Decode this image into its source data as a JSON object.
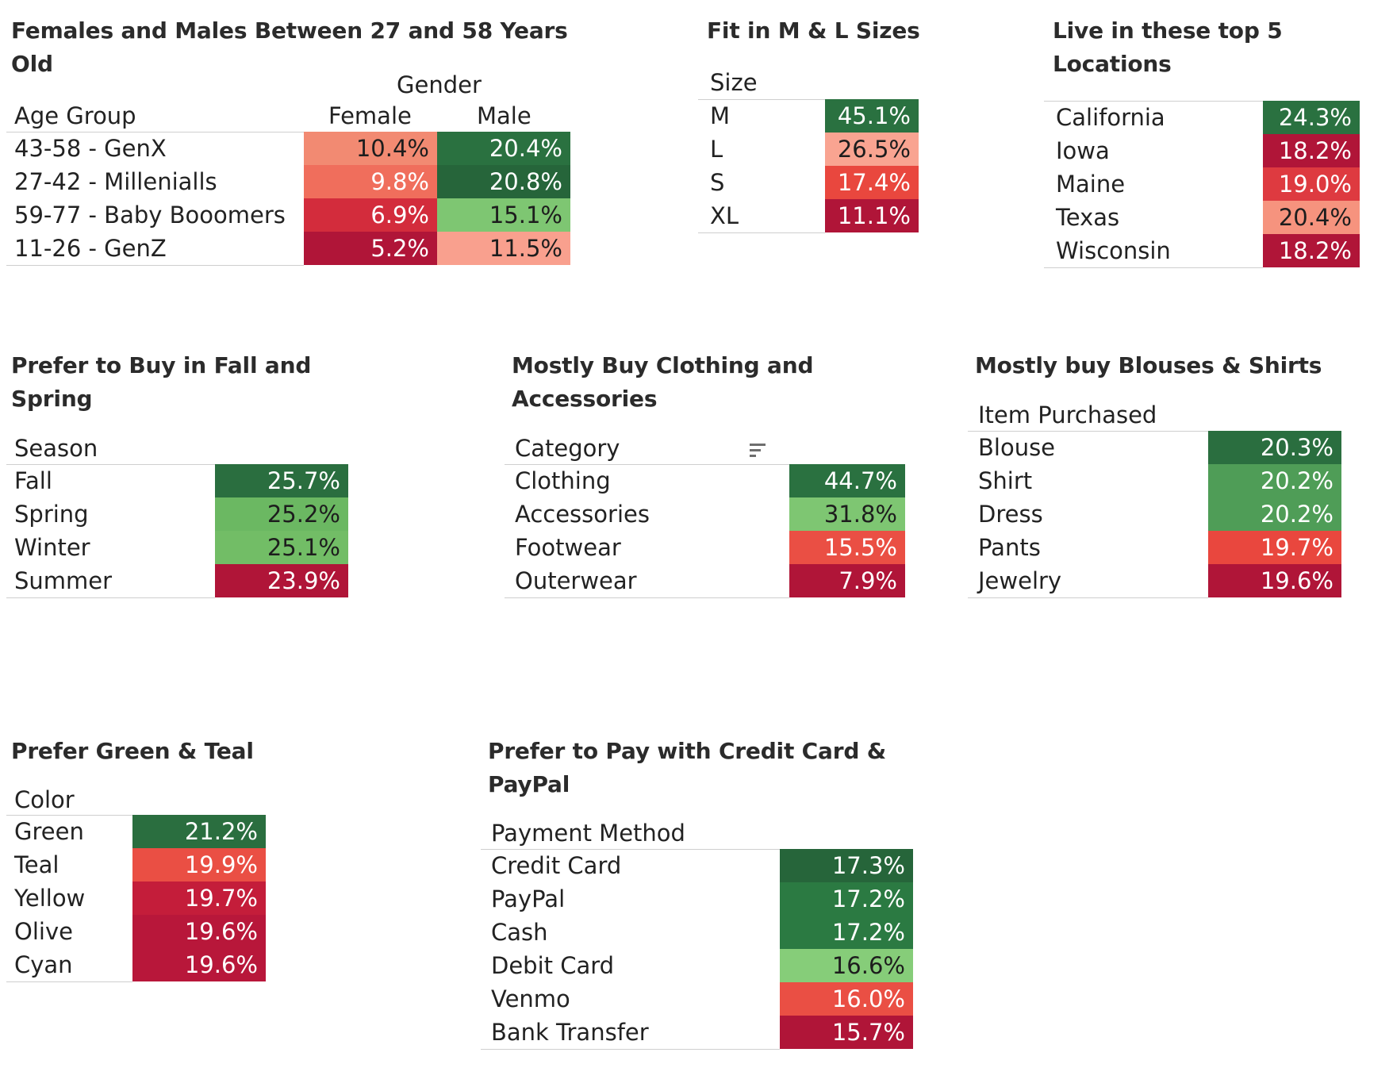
{
  "chart_data": [
    {
      "type": "table",
      "id": "age_gender",
      "title": "Females and Males Between 27 and 58 Years Old",
      "row_header": "Age Group",
      "column_group": "Gender",
      "columns": [
        "Female",
        "Male"
      ],
      "rows": [
        {
          "label": "43-58 - GenX",
          "values": [
            "10.4%",
            "20.4%"
          ],
          "colors": [
            "#f28a72",
            "#2a7140"
          ]
        },
        {
          "label": "27-42 - Millenialls",
          "values": [
            "9.8%",
            "20.8%"
          ],
          "colors": [
            "#f06e5c",
            "#26653a"
          ]
        },
        {
          "label": "59-77 - Baby Booomers",
          "values": [
            "6.9%",
            "15.1%"
          ],
          "colors": [
            "#d32c3c",
            "#7ec672"
          ]
        },
        {
          "label": "11-26 - GenZ",
          "values": [
            "5.2%",
            "11.5%"
          ],
          "colors": [
            "#b01538",
            "#f9a08e"
          ]
        }
      ]
    },
    {
      "type": "table",
      "id": "size",
      "title": "Fit in M & L Sizes",
      "row_header": "Size",
      "rows": [
        {
          "label": "M",
          "value": "45.1%",
          "color": "#2a7140"
        },
        {
          "label": "L",
          "value": "26.5%",
          "color": "#f9a491"
        },
        {
          "label": "S",
          "value": "17.4%",
          "color": "#e9473e"
        },
        {
          "label": "XL",
          "value": "11.1%",
          "color": "#b01538"
        }
      ]
    },
    {
      "type": "table",
      "id": "locations",
      "title": "Live in these top 5\nLocations",
      "rows": [
        {
          "label": "California",
          "value": "24.3%",
          "color": "#2a7140"
        },
        {
          "label": "Iowa",
          "value": "18.2%",
          "color": "#b01538"
        },
        {
          "label": "Maine",
          "value": "19.0%",
          "color": "#de3a40"
        },
        {
          "label": "Texas",
          "value": "20.4%",
          "color": "#f6937e"
        },
        {
          "label": "Wisconsin",
          "value": "18.2%",
          "color": "#b01538"
        }
      ]
    },
    {
      "type": "table",
      "id": "season",
      "title": "Prefer to Buy in Fall and\nSpring",
      "row_header": "Season",
      "rows": [
        {
          "label": "Fall",
          "value": "25.7%",
          "color": "#2a6e3f"
        },
        {
          "label": "Spring",
          "value": "25.2%",
          "color": "#6bb862"
        },
        {
          "label": "Winter",
          "value": "25.1%",
          "color": "#72bd66"
        },
        {
          "label": "Summer",
          "value": "23.9%",
          "color": "#b01538"
        }
      ]
    },
    {
      "type": "table",
      "id": "category",
      "title": "Mostly Buy Clothing and\nAccessories",
      "row_header": "Category",
      "rows": [
        {
          "label": "Clothing",
          "value": "44.7%",
          "color": "#2a7140"
        },
        {
          "label": "Accessories",
          "value": "31.8%",
          "color": "#7ec672"
        },
        {
          "label": "Footwear",
          "value": "15.5%",
          "color": "#ea4f44"
        },
        {
          "label": "Outerwear",
          "value": "7.9%",
          "color": "#b01538"
        }
      ]
    },
    {
      "type": "table",
      "id": "items",
      "title": "Mostly buy Blouses & Shirts",
      "row_header": "Item Purchased",
      "rows": [
        {
          "label": "Blouse",
          "value": "20.3%",
          "color": "#2a6e3f"
        },
        {
          "label": "Shirt",
          "value": "20.2%",
          "color": "#4f9d57"
        },
        {
          "label": "Dress",
          "value": "20.2%",
          "color": "#4f9d57"
        },
        {
          "label": "Pants",
          "value": "19.7%",
          "color": "#e9473e"
        },
        {
          "label": "Jewelry",
          "value": "19.6%",
          "color": "#b01538"
        }
      ]
    },
    {
      "type": "table",
      "id": "color",
      "title": "Prefer Green & Teal",
      "row_header": "Color",
      "rows": [
        {
          "label": "Green",
          "value": "21.2%",
          "color": "#2a6e3f"
        },
        {
          "label": "Teal",
          "value": "19.9%",
          "color": "#ea4f44"
        },
        {
          "label": "Yellow",
          "value": "19.7%",
          "color": "#c41d3a"
        },
        {
          "label": "Olive",
          "value": "19.6%",
          "color": "#b8173a"
        },
        {
          "label": "Cyan",
          "value": "19.6%",
          "color": "#b8173a"
        }
      ]
    },
    {
      "type": "table",
      "id": "payment",
      "title": "Prefer to Pay with Credit Card &\nPayPal",
      "row_header": "Payment Method",
      "rows": [
        {
          "label": "Credit Card",
          "value": "17.3%",
          "color": "#26653a"
        },
        {
          "label": "PayPal",
          "value": "17.2%",
          "color": "#2b7a42"
        },
        {
          "label": "Cash",
          "value": "17.2%",
          "color": "#2b7a42"
        },
        {
          "label": "Debit Card",
          "value": "16.6%",
          "color": "#86cd79"
        },
        {
          "label": "Venmo",
          "value": "16.0%",
          "color": "#ea4f44"
        },
        {
          "label": "Bank Transfer",
          "value": "15.7%",
          "color": "#b01538"
        }
      ]
    }
  ]
}
